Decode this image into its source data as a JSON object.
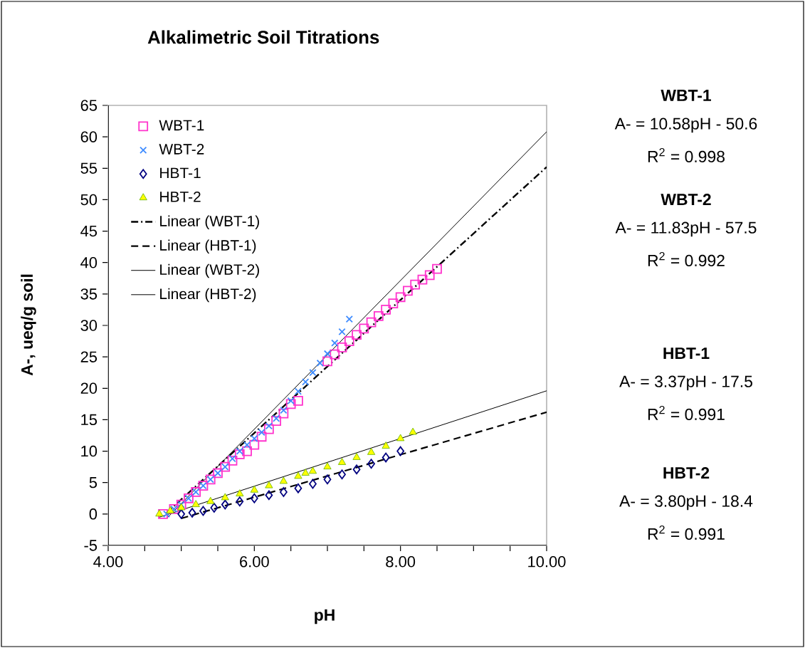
{
  "chart_data": {
    "type": "scatter",
    "title": "Alkalimetric Soil Titrations",
    "xlabel": "pH",
    "ylabel": "A-, ueq/g soil",
    "xlim": [
      4,
      10
    ],
    "ylim": [
      -5,
      65
    ],
    "xticks": [
      {
        "value": 4,
        "label": "4.00"
      },
      {
        "value": 4.5,
        "label": null
      },
      {
        "value": 5,
        "label": null
      },
      {
        "value": 5.5,
        "label": null
      },
      {
        "value": 6,
        "label": "6.00"
      },
      {
        "value": 6.5,
        "label": null
      },
      {
        "value": 7,
        "label": null
      },
      {
        "value": 7.5,
        "label": null
      },
      {
        "value": 8,
        "label": "8.00"
      },
      {
        "value": 8.5,
        "label": null
      },
      {
        "value": 9,
        "label": null
      },
      {
        "value": 9.5,
        "label": null
      },
      {
        "value": 10,
        "label": "10.00"
      }
    ],
    "yticks": [
      -5,
      0,
      5,
      10,
      15,
      20,
      25,
      30,
      35,
      40,
      45,
      50,
      55,
      60,
      65
    ],
    "legend": "top left",
    "series": [
      {
        "name": "WBT-1",
        "marker": "square",
        "color": "#ff33cc",
        "x": [
          4.75,
          4.9,
          5.0,
          5.1,
          5.2,
          5.3,
          5.4,
          5.5,
          5.6,
          5.7,
          5.8,
          5.9,
          6.0,
          6.1,
          6.2,
          6.3,
          6.4,
          6.5,
          6.6,
          7.0,
          7.1,
          7.2,
          7.3,
          7.4,
          7.5,
          7.6,
          7.7,
          7.8,
          7.9,
          8.0,
          8.1,
          8.2,
          8.3,
          8.4,
          8.5
        ],
        "values": [
          0,
          0.8,
          1.5,
          2.5,
          3.5,
          4.5,
          5.5,
          6.5,
          7.5,
          8.5,
          9.5,
          10,
          11,
          12.3,
          13.5,
          14.8,
          16,
          17.5,
          18,
          24.3,
          25.4,
          26.5,
          27.5,
          28.5,
          29.5,
          30.5,
          31.5,
          32.5,
          33.5,
          34.5,
          35.5,
          36.5,
          37.3,
          38,
          39
        ]
      },
      {
        "name": "WBT-2",
        "marker": "cross",
        "color": "#3f8cff",
        "x": [
          4.8,
          4.9,
          5.0,
          5.1,
          5.2,
          5.3,
          5.4,
          5.5,
          5.6,
          5.7,
          5.8,
          5.9,
          6.0,
          6.1,
          6.2,
          6.3,
          6.4,
          6.5,
          6.6,
          6.7,
          6.8,
          6.9,
          7.0,
          7.1,
          7.2,
          7.3
        ],
        "values": [
          0,
          0.8,
          1.5,
          2.5,
          3.5,
          4.5,
          5.5,
          6.5,
          7.5,
          8.8,
          10,
          11,
          12,
          13,
          14,
          15.2,
          16.5,
          18,
          19.5,
          21,
          22.5,
          24,
          25.5,
          27.2,
          29,
          31
        ]
      },
      {
        "name": "HBT-1",
        "marker": "diamond",
        "color": "#000080",
        "x": [
          5.0,
          5.15,
          5.3,
          5.45,
          5.6,
          5.8,
          6.0,
          6.2,
          6.4,
          6.6,
          6.8,
          7.0,
          7.2,
          7.4,
          7.6,
          7.8,
          8.0
        ],
        "values": [
          0,
          0.2,
          0.5,
          1,
          1.5,
          2,
          2.5,
          3,
          3.5,
          4.1,
          4.8,
          5.5,
          6.3,
          7.1,
          8,
          9,
          10
        ]
      },
      {
        "name": "HBT-2",
        "marker": "triangle",
        "color": "#ffff00",
        "x": [
          4.7,
          4.85,
          5.0,
          5.2,
          5.4,
          5.6,
          5.8,
          6.0,
          6.2,
          6.4,
          6.6,
          6.7,
          6.8,
          7.0,
          7.2,
          7.4,
          7.6,
          7.8,
          8.0,
          8.17
        ],
        "values": [
          0,
          0.5,
          1,
          1.5,
          2,
          2.6,
          3.2,
          3.8,
          4.5,
          5.2,
          6,
          6.5,
          6.8,
          7.5,
          8.2,
          9,
          9.8,
          10.8,
          12,
          13
        ]
      },
      {
        "name": "Linear (WBT-1)",
        "type": "line",
        "line_style": "dashdotted",
        "color": "#000000",
        "x": [
          4.8,
          10
        ],
        "values": [
          0.2,
          55.2
        ]
      },
      {
        "name": "Linear (HBT-1)",
        "type": "line",
        "line_style": "dashed",
        "color": "#000000",
        "x": [
          5.0,
          10
        ],
        "values": [
          -0.7,
          16.2
        ]
      },
      {
        "name": "Linear (WBT-2)",
        "type": "line",
        "line_style": "solid",
        "color": "#000000",
        "x": [
          4.8,
          10
        ],
        "values": [
          -0.7,
          60.8
        ]
      },
      {
        "name": "Linear (HBT-2)",
        "type": "line",
        "line_style": "solid",
        "color": "#000000",
        "x": [
          4.7,
          10
        ],
        "values": [
          -0.5,
          19.6
        ]
      }
    ],
    "annotations": [
      "WBT-1",
      "A- = 10.58pH - 50.6",
      "R$^{2}$ = 0.998",
      "WBT-2",
      "A- = 11.83pH - 57.5",
      "R$^{2}$ = 0.992",
      "HBT-1",
      "A- = 3.37pH - 17.5",
      "R$^{2}$ = 0.991",
      "HBT-2",
      "A- = 3.80pH - 18.4",
      "R$^{2}$ = 0.991"
    ]
  }
}
